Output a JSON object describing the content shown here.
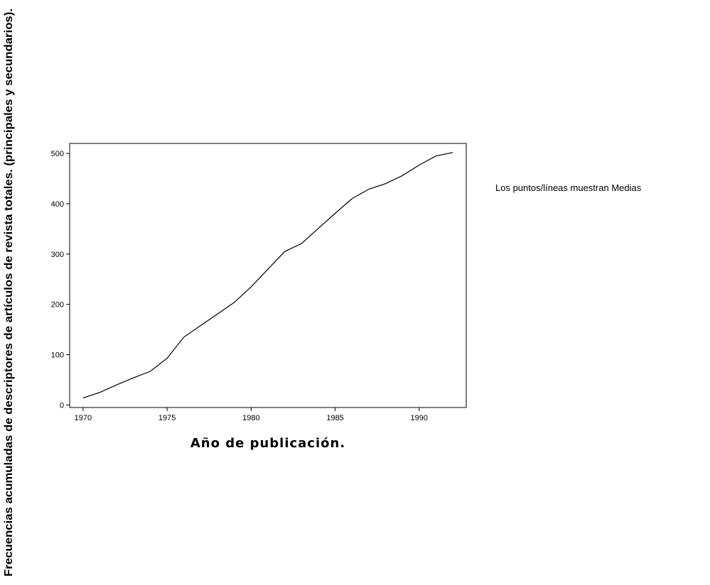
{
  "chart_data": {
    "type": "line",
    "xlabel": "Año de publicación.",
    "ylabel": "Frecuencias acumuladas de descriptores de artículos de revista totales. (principales y secundarios).",
    "annotation": "Los puntos/líneas muestran Medias",
    "xlim": [
      1969.2,
      1992.8
    ],
    "ylim": [
      -5,
      520
    ],
    "x_ticks": [
      1970,
      1975,
      1980,
      1985,
      1990
    ],
    "y_ticks": [
      0,
      100,
      200,
      300,
      400,
      500
    ],
    "grid": false,
    "x": [
      1970,
      1971,
      1972,
      1973,
      1974,
      1975,
      1976,
      1977,
      1978,
      1979,
      1980,
      1981,
      1982,
      1983,
      1984,
      1985,
      1986,
      1987,
      1988,
      1989,
      1990,
      1991,
      1992
    ],
    "series": [
      {
        "values": [
          14,
          25,
          40,
          54,
          67,
          93,
          135,
          158,
          181,
          204,
          235,
          270,
          305,
          321,
          351,
          381,
          410,
          429,
          440,
          456,
          477,
          495,
          502
        ],
        "color": "#000000"
      }
    ]
  }
}
